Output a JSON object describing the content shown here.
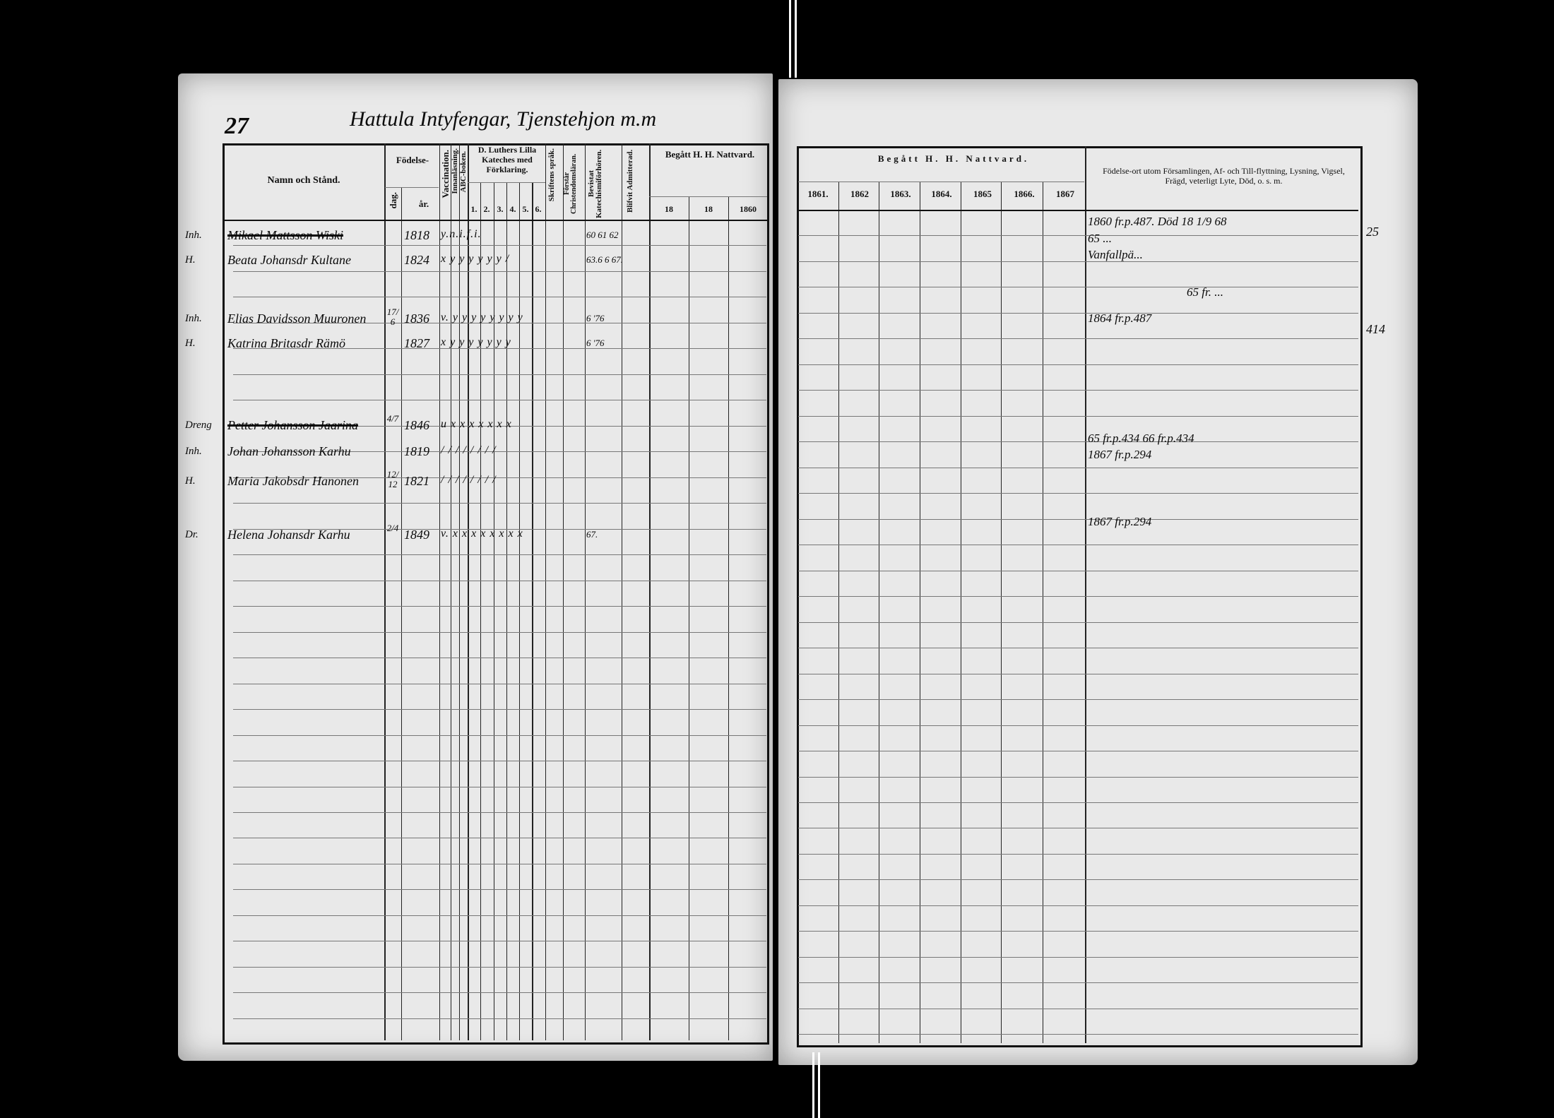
{
  "left_page": {
    "page_number": "27",
    "title": "Hattula Intyfengar, Tjenstehjon m.m",
    "headers": {
      "name": "Namn och Stånd.",
      "birth": "Födelse-",
      "birth_day": "dag.",
      "birth_year": "år.",
      "vaccination": "Vaccination.",
      "reading": "Innanläsning.",
      "abc": "ABC-boken.",
      "luther": "D. Luthers Lilla Kateches med Förklaring.",
      "luther_parts": [
        "1.",
        "2.",
        "3.",
        "4.",
        "5.",
        "6."
      ],
      "scripture_language": "Skriftens språk.",
      "understands": "Förstår Christendomsläran.",
      "attended": "Bevistat Katechismiförhören.",
      "admitted": "Blifvit Admitterad.",
      "communion": "Begått H. H. Nattvard.",
      "communion_years": [
        "18",
        "18",
        "1860"
      ]
    },
    "entries": [
      {
        "status": "Inh.",
        "name": "Mikael Mattsson Wiski",
        "struck": true,
        "day": "",
        "year": "1818",
        "marks": "y.n.i.f.i.",
        "attended": "60 61 62"
      },
      {
        "status": "H.",
        "name": "Beata Johansdr Kultane",
        "struck": false,
        "day": "",
        "year": "1824",
        "marks": "x y y y y y y /",
        "attended": "63.6 6 67."
      },
      {
        "status": "Inh.",
        "name": "Elias Davidsson Muuronen",
        "struck": false,
        "day": "17/6",
        "year": "1836",
        "marks": "v. y y y y y y y y",
        "attended": "6 '76"
      },
      {
        "status": "H.",
        "name": "Katrina Britasdr Rämö",
        "struck": false,
        "day": "",
        "year": "1827",
        "marks": "x y y y y y y y",
        "attended": "6 '76"
      },
      {
        "status": "Dreng",
        "name": "Petter Johansson Jaarina",
        "struck": true,
        "day": "4/7",
        "year": "1846",
        "marks": "u x x x x x x x",
        "attended": ""
      },
      {
        "status": "Inh.",
        "name": "Johan Johansson Karhu",
        "struck": false,
        "day": "",
        "year": "1819",
        "marks": "/ / / / / / / /",
        "attended": ""
      },
      {
        "status": "H.",
        "name": "Maria Jakobsdr Hanonen",
        "struck": false,
        "day": "12/12",
        "year": "1821",
        "marks": "/ / / / / / / /",
        "attended": ""
      },
      {
        "status": "Dr.",
        "name": "Helena Johansdr Karhu",
        "struck": false,
        "day": "2/4",
        "year": "1849",
        "marks": "v. x x x x x x x x",
        "attended": "67."
      }
    ]
  },
  "right_page": {
    "headers": {
      "communion": "Begått H. H. Nattvard.",
      "communion_years": [
        "1861.",
        "1862",
        "1863.",
        "1864.",
        "1865",
        "1866.",
        "1867"
      ],
      "remarks": "Födelse-ort utom Församlingen, Af- och Till-flyttning, Lysning, Vigsel, Frägd, veterligt Lyte, Död, o. s. m."
    },
    "remarks": [
      "1860 fr.p.487. Död 18 1/9 68",
      "65 ...",
      "Vanfallpä...",
      "65 fr. ...",
      "1864 fr.p.487",
      "65 fr.p.434 66 fr.p.434",
      "1867 fr.p.294",
      "1867 fr.p.294"
    ],
    "margin_numbers": [
      "25",
      "414"
    ]
  }
}
